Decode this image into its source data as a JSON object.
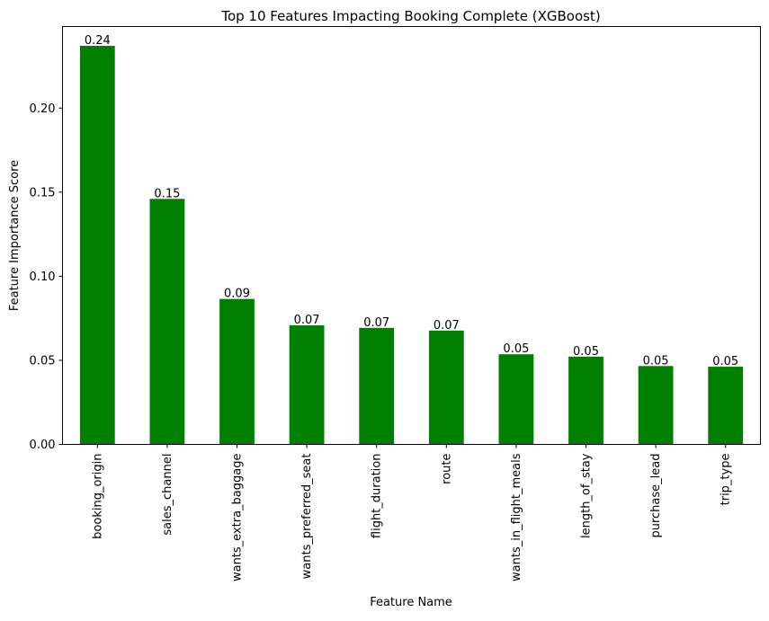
{
  "chart_data": {
    "type": "bar",
    "title": "Top 10 Features Impacting Booking Complete (XGBoost)",
    "xlabel": "Feature Name",
    "ylabel": "Feature Importance Score",
    "categories": [
      "booking_origin",
      "sales_channel",
      "wants_extra_baggage",
      "wants_preferred_seat",
      "flight_duration",
      "route",
      "wants_in_flight_meals",
      "length_of_stay",
      "purchase_lead",
      "trip_type"
    ],
    "values": [
      0.237,
      0.146,
      0.0865,
      0.0708,
      0.0693,
      0.0677,
      0.0536,
      0.0522,
      0.0466,
      0.0462
    ],
    "data_labels": [
      "0.24",
      "0.15",
      "0.09",
      "0.07",
      "0.07",
      "0.07",
      "0.05",
      "0.05",
      "0.05",
      "0.05"
    ],
    "ylim": [
      0,
      0.2485
    ],
    "yticks": [
      0,
      0.05,
      0.1,
      0.15,
      0.2
    ],
    "ytick_labels": [
      "0.00",
      "0.05",
      "0.10",
      "0.15",
      "0.20"
    ],
    "bar_color": "#008000",
    "grid": false,
    "legend": "none"
  }
}
